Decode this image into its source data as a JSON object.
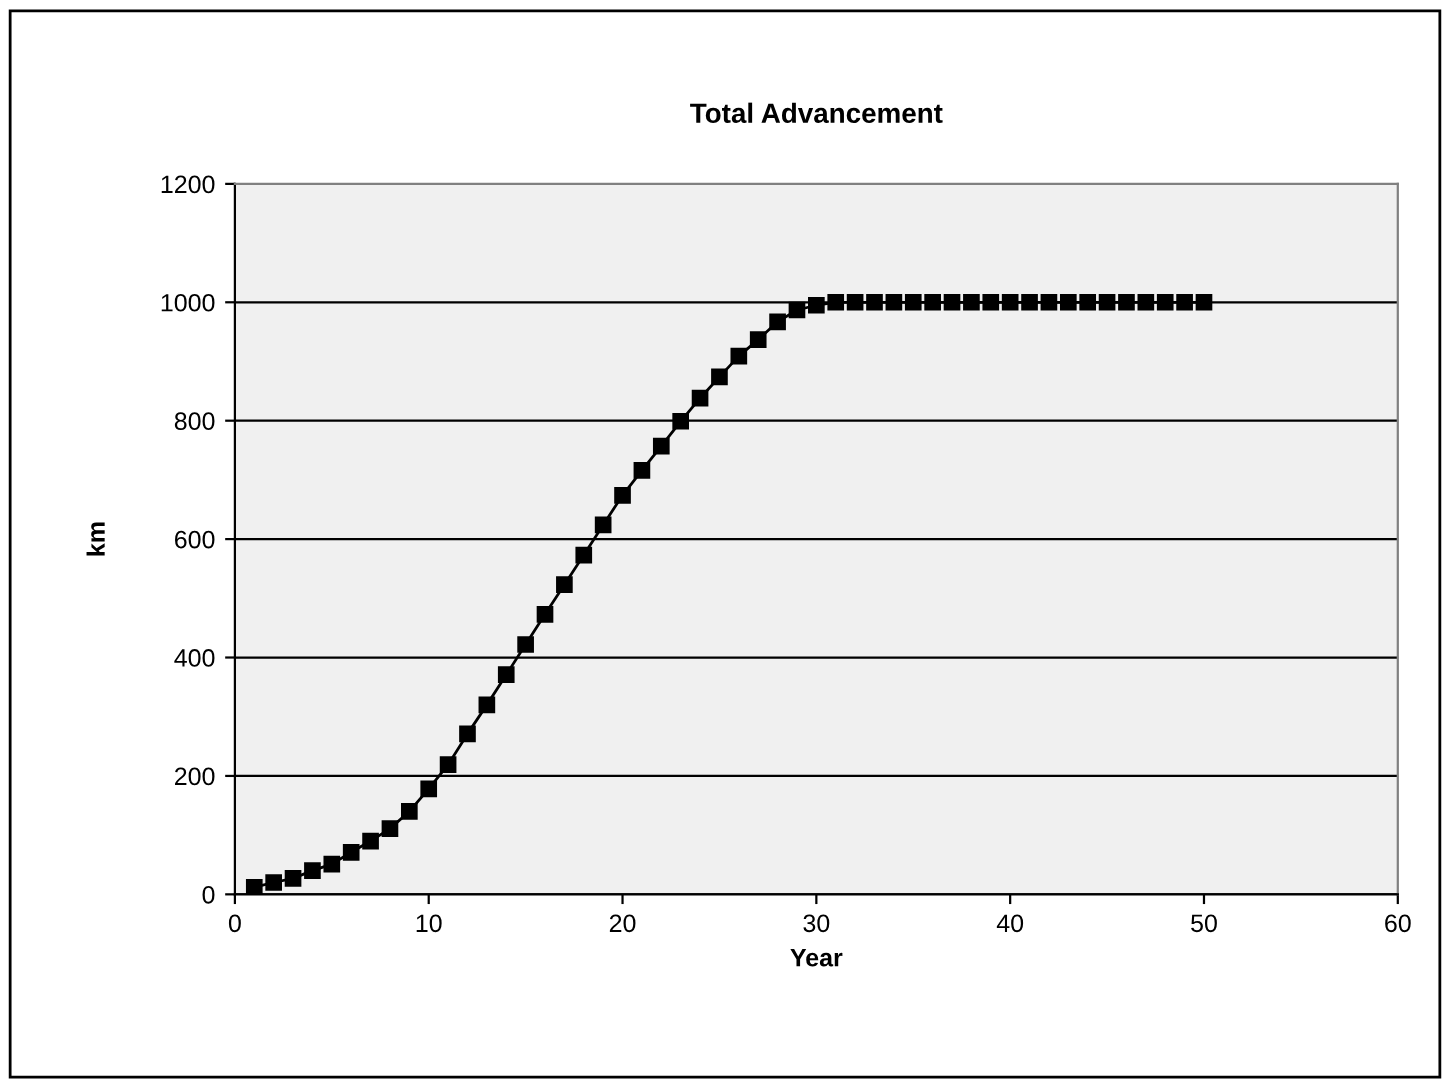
{
  "chart_data": {
    "type": "line",
    "title": "Total Advancement",
    "xlabel": "Year",
    "ylabel": "km",
    "x": [
      1,
      2,
      3,
      4,
      5,
      6,
      7,
      8,
      9,
      10,
      11,
      12,
      13,
      14,
      15,
      16,
      17,
      18,
      19,
      20,
      21,
      22,
      23,
      24,
      25,
      26,
      27,
      28,
      29,
      30,
      31,
      32,
      33,
      34,
      35,
      36,
      37,
      38,
      39,
      40,
      41,
      42,
      43,
      44,
      45,
      46,
      47,
      48,
      49,
      50
    ],
    "series": [
      {
        "color": "#000000",
        "values": [
          12,
          20,
          27,
          40,
          51,
          71,
          90,
          111,
          140,
          178,
          219,
          271,
          320,
          371,
          422,
          473,
          523,
          573,
          624,
          674,
          716,
          757,
          799,
          838,
          874,
          909,
          937,
          967,
          987,
          995,
          1000,
          1000,
          1000,
          1000,
          1000,
          1000,
          1000,
          1000,
          1000,
          1000,
          1000,
          1000,
          1000,
          1000,
          1000,
          1000,
          1000,
          1000,
          1000,
          1000
        ]
      }
    ],
    "xlim": [
      0,
      60
    ],
    "xticks": [
      0,
      10,
      20,
      30,
      40,
      50,
      60
    ],
    "ylim": [
      0,
      1200
    ],
    "yticks": [
      0,
      200,
      400,
      600,
      800,
      1000,
      1200
    ],
    "grid": "y",
    "marker": "square",
    "line_style": "solid",
    "legend": false
  }
}
